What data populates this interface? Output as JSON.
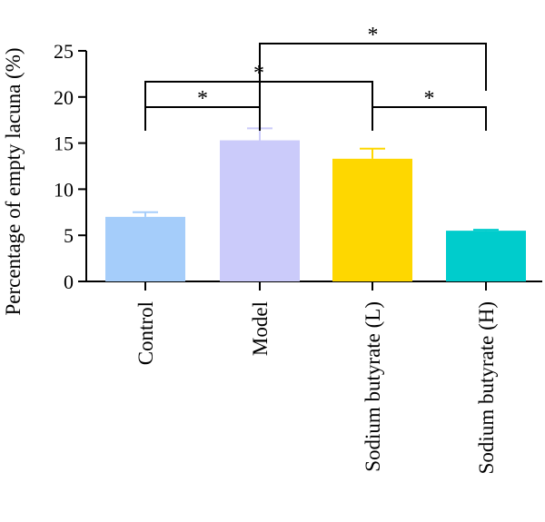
{
  "chart_data": {
    "type": "bar",
    "title": "",
    "xlabel": "",
    "ylabel": "Percentage of empty lacuna (%)",
    "ylim": [
      0,
      25
    ],
    "yticks": [
      0,
      5,
      10,
      15,
      20,
      25
    ],
    "grid": false,
    "legend": "none",
    "categories": [
      "Control",
      "Model",
      "Sodium butyrate (L)",
      "Sodium butyrate (H)"
    ],
    "values": [
      7.0,
      15.3,
      13.3,
      5.5
    ],
    "errors": [
      0.5,
      1.3,
      1.1,
      0.1
    ],
    "colors": [
      "#a5cdfa",
      "#cbcbfa",
      "#fed700",
      "#00cccc"
    ],
    "significance": [
      {
        "from": "Control",
        "to": "Model",
        "label": "*"
      },
      {
        "from": "Control",
        "to": "Sodium butyrate (L)",
        "label": "*"
      },
      {
        "from": "Model",
        "to": "Sodium butyrate (H)",
        "label": "*"
      },
      {
        "from": "Sodium butyrate (L)",
        "to": "Sodium butyrate (H)",
        "label": "*"
      }
    ]
  }
}
